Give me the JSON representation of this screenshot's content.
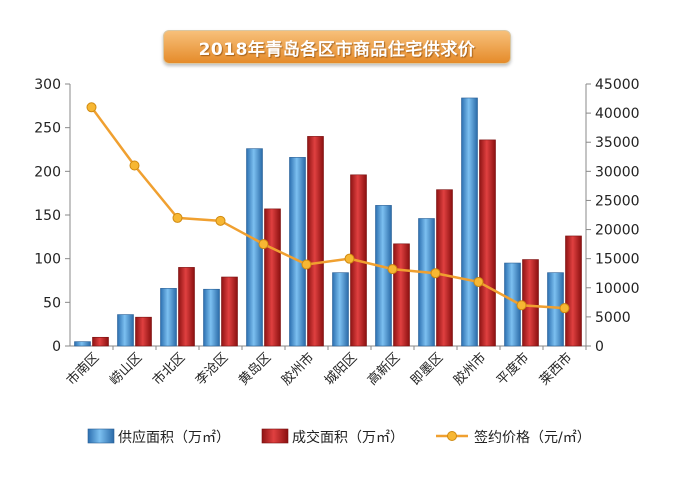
{
  "chart_data": {
    "type": "bar",
    "title": "2018年青岛各区市商品住宅供求价",
    "categories": [
      "市南区",
      "崂山区",
      "市北区",
      "李沧区",
      "黄岛区",
      "胶州市",
      "城阳区",
      "高新区",
      "即墨区",
      "胶州市",
      "平度市",
      "莱西市"
    ],
    "series": [
      {
        "name": "供应面积（万㎡）",
        "axis": "left",
        "type": "bar",
        "color": "#3b8fd6",
        "values": [
          5,
          36,
          66,
          65,
          226,
          216,
          84,
          161,
          146,
          284,
          95,
          84
        ]
      },
      {
        "name": "成交面积（万㎡）",
        "axis": "left",
        "type": "bar",
        "color": "#cc2a2a",
        "values": [
          10,
          33,
          90,
          79,
          157,
          240,
          196,
          117,
          179,
          236,
          99,
          126
        ]
      },
      {
        "name": "签约价格（元/㎡）",
        "axis": "right",
        "type": "line",
        "color": "#f0a030",
        "values": [
          41000,
          31000,
          22000,
          21500,
          17500,
          14000,
          15000,
          13200,
          12500,
          11000,
          7000,
          6500
        ]
      }
    ],
    "ylim": [
      0,
      300
    ],
    "y_ticks": [
      "0",
      "50",
      "100",
      "150",
      "200",
      "250",
      "300"
    ],
    "y2lim": [
      0,
      45000
    ],
    "y2_ticks": [
      "0",
      "5000",
      "10000",
      "15000",
      "20000",
      "25000",
      "30000",
      "35000",
      "40000",
      "45000"
    ],
    "grid": false,
    "legend_position": "bottom"
  }
}
